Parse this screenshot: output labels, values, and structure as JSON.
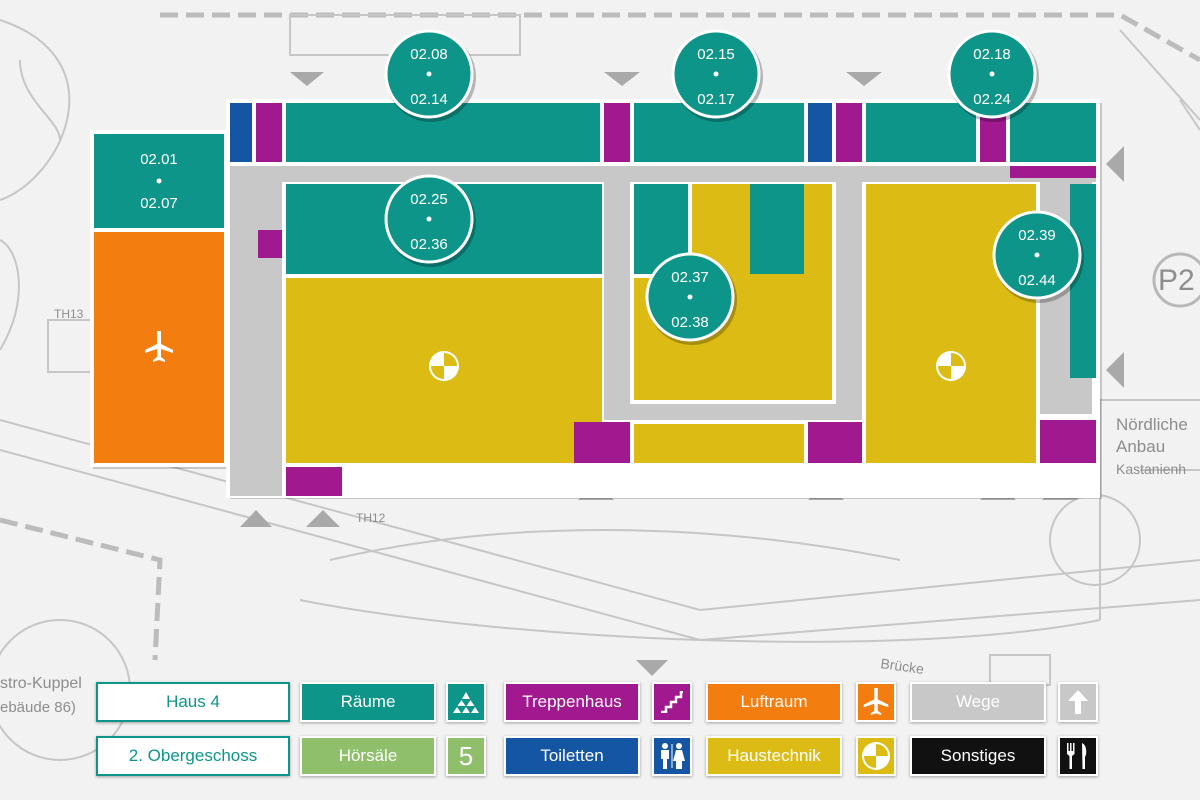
{
  "building": "Haus 4",
  "floor": "2. Obergeschoss",
  "room_markers": [
    {
      "top": "02.08",
      "bottom": "02.14"
    },
    {
      "top": "02.15",
      "bottom": "02.17"
    },
    {
      "top": "02.18",
      "bottom": "02.24"
    },
    {
      "top": "02.25",
      "bottom": "02.36"
    },
    {
      "top": "02.37",
      "bottom": "02.38"
    },
    {
      "top": "02.39",
      "bottom": "02.44"
    }
  ],
  "left_block": {
    "top": "02.01",
    "bottom": "02.07"
  },
  "map_labels": {
    "th13": "TH13",
    "th12": "TH12",
    "p2": "P2",
    "north_1": "Nördliche",
    "north_2": "Anbau",
    "north_3": "Kastanienh",
    "astro_1": "stro-Kuppel",
    "astro_2": "ebäude 86)",
    "bruecke": "Brücke"
  },
  "legend": {
    "raeume": "Räume",
    "hoersaele": "Hörsäle",
    "hoersaele_icon": "5",
    "treppenhaus": "Treppenhaus",
    "toiletten": "Toiletten",
    "luftraum": "Luftraum",
    "haustechnik": "Haustechnik",
    "wege": "Wege",
    "sonstiges": "Sonstiges"
  },
  "colors": {
    "raeume": "#0e958a",
    "hoersaele": "#8fbf6b",
    "treppenhaus": "#a0198e",
    "toiletten": "#1455a4",
    "luftraum": "#f47d0f",
    "haustechnik": "#dcbc14",
    "wege": "#c8c8c8",
    "sonstiges": "#111111"
  },
  "icons": [
    "pyramid-icon",
    "stairs-icon",
    "airplane-icon",
    "up-arrow-icon",
    "toilet-icon",
    "gauge-icon",
    "cutlery-icon"
  ]
}
